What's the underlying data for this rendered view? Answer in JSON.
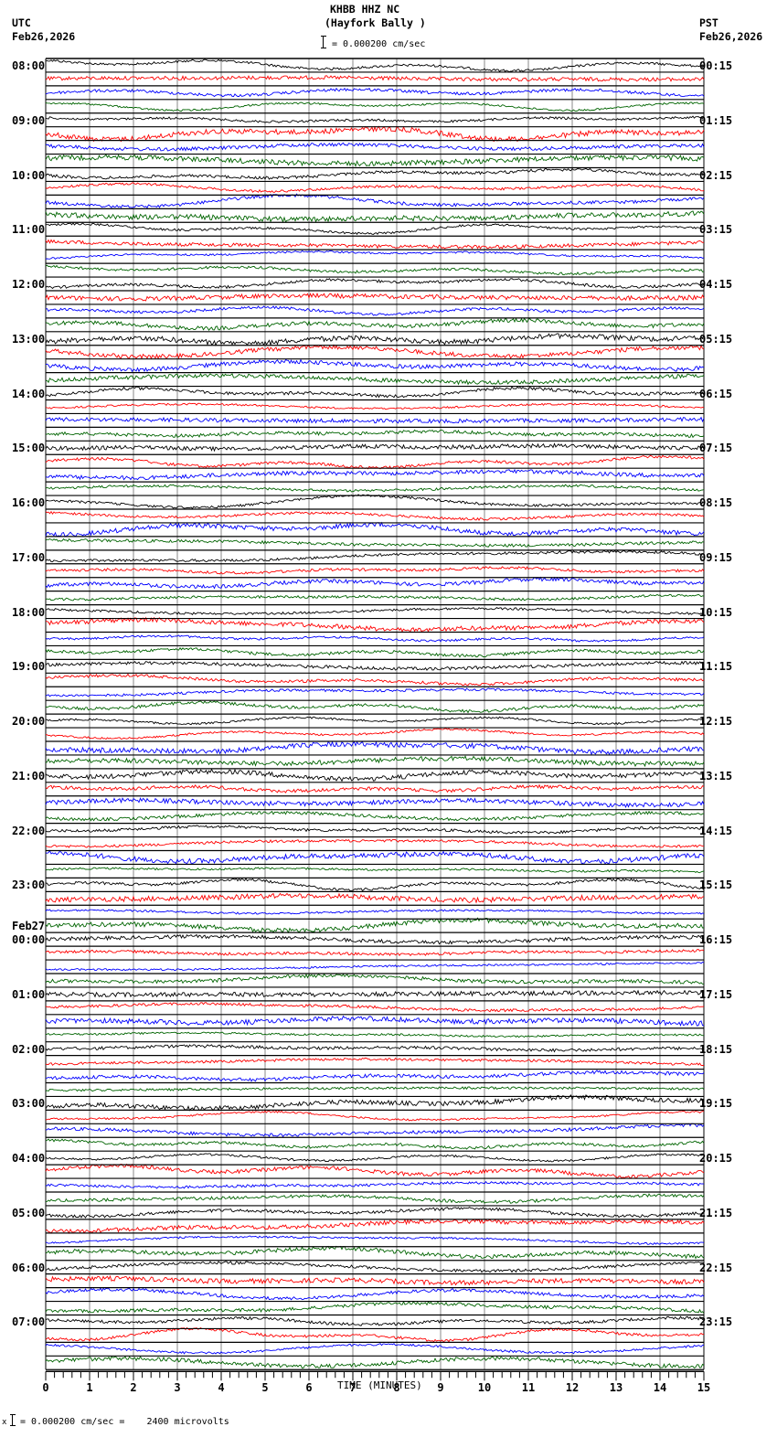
{
  "header": {
    "station": "KHBB HHZ NC",
    "location": "(Hayfork Bally )",
    "scale": "= 0.000200 cm/sec",
    "left_tz": "UTC",
    "left_date": "Feb26,2026",
    "right_tz": "PST",
    "right_date": "Feb26,2026"
  },
  "footer": {
    "prefix": "x",
    "scale_text": "= 0.000200 cm/sec =    2400 microvolts"
  },
  "chart_data": {
    "type": "line",
    "title": "KHBB HHZ NC (Hayfork Bally )",
    "subtitle": "= 0.000200 cm/sec",
    "xlabel": "TIME (MINUTES)",
    "ylabel": "",
    "xlim": [
      0,
      15
    ],
    "x_ticks": [
      "0",
      "1",
      "2",
      "3",
      "4",
      "5",
      "6",
      "7",
      "8",
      "9",
      "10",
      "11",
      "12",
      "13",
      "14",
      "15"
    ],
    "minor_ticks_per_minute": 5,
    "grid": true,
    "traces_per_hour": 4,
    "trace_colors": [
      "#000000",
      "#ff0000",
      "#0000ff",
      "#006400"
    ],
    "left_labels": [
      "08:00",
      "09:00",
      "10:00",
      "11:00",
      "12:00",
      "13:00",
      "14:00",
      "15:00",
      "16:00",
      "17:00",
      "18:00",
      "19:00",
      "20:00",
      "21:00",
      "22:00",
      "23:00",
      "00:00",
      "01:00",
      "02:00",
      "03:00",
      "04:00",
      "05:00",
      "06:00",
      "07:00"
    ],
    "date_change_label": "Feb27",
    "date_change_index": 16,
    "right_labels": [
      "00:15",
      "01:15",
      "02:15",
      "03:15",
      "04:15",
      "05:15",
      "06:15",
      "07:15",
      "08:15",
      "09:15",
      "10:15",
      "11:15",
      "12:15",
      "13:15",
      "14:15",
      "15:15",
      "16:15",
      "17:15",
      "18:15",
      "19:15",
      "20:15",
      "21:15",
      "22:15",
      "23:15"
    ],
    "scale_note": "0.000200 cm/sec = 2400 microvolts"
  }
}
